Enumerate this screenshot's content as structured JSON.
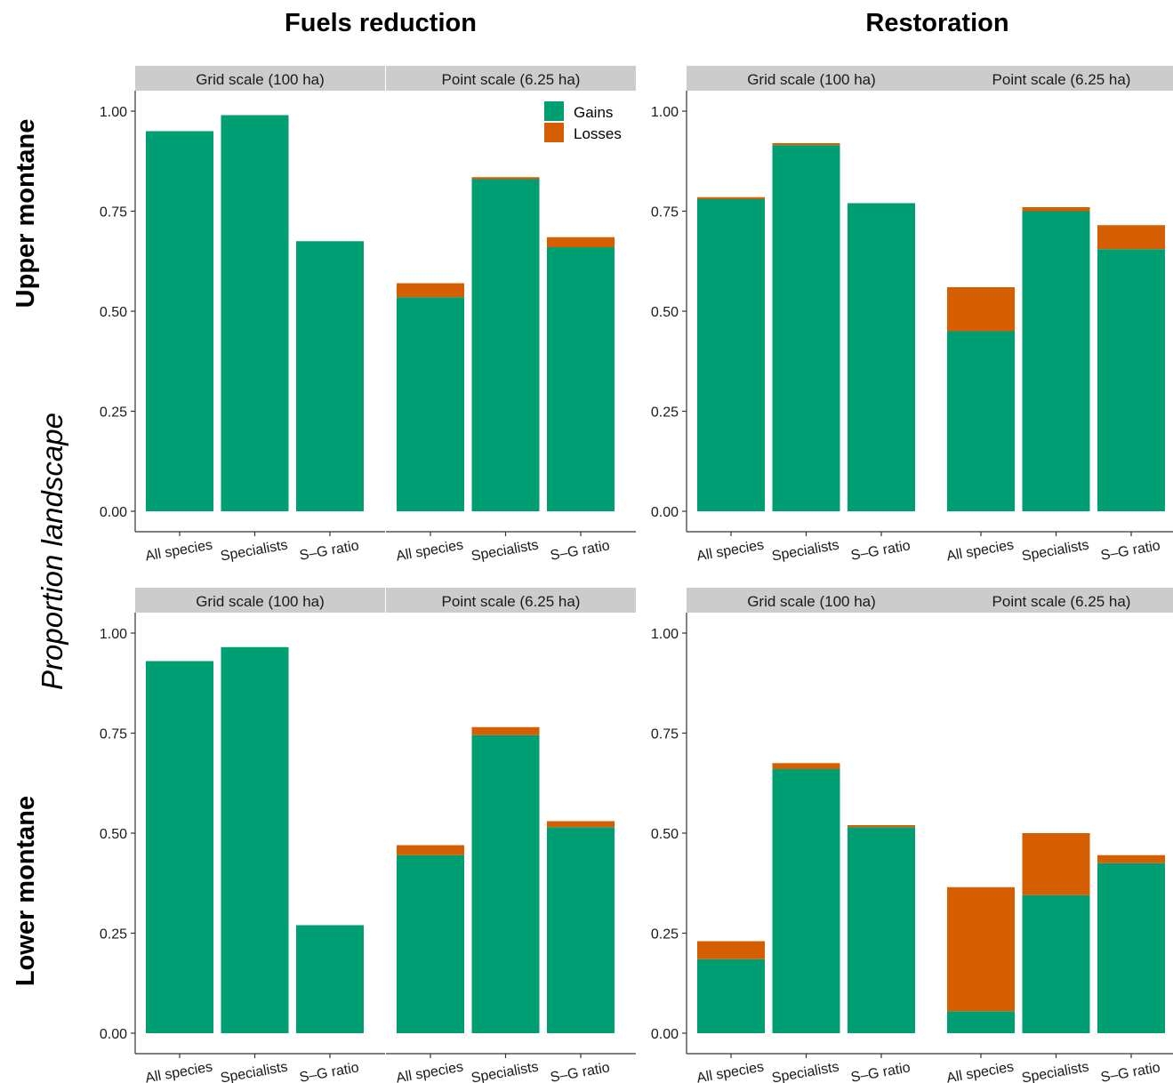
{
  "colors": {
    "gains": "#009E73",
    "losses": "#D55E00",
    "strip": "#CCCCCC"
  },
  "column_titles": [
    "Fuels reduction",
    "Restoration"
  ],
  "row_titles": [
    "Upper montane",
    "Lower montane"
  ],
  "y_axis_title": "Proportion landscape",
  "legend": {
    "gains": "Gains",
    "losses": "Losses"
  },
  "chart_data": {
    "type": "bar",
    "stacked": true,
    "ylim": [
      0,
      1.05
    ],
    "yticks": [
      "0.00",
      "0.25",
      "0.50",
      "0.75",
      "1.00"
    ],
    "categories": [
      "All species",
      "Specialists",
      "S–G ratio"
    ],
    "series_names": [
      "Gains",
      "Losses"
    ],
    "legend_position": "top-right",
    "grid": false,
    "panels": [
      {
        "row": 0,
        "col": 0,
        "strip": "Grid scale (100 ha)",
        "gains": [
          0.95,
          0.99,
          0.675
        ],
        "losses": [
          0.0,
          0.0,
          0.0
        ]
      },
      {
        "row": 0,
        "col": 1,
        "strip": "Point scale (6.25 ha)",
        "gains": [
          0.535,
          0.83,
          0.66
        ],
        "losses": [
          0.035,
          0.005,
          0.025
        ]
      },
      {
        "row": 0,
        "col": 2,
        "strip": "Grid scale (100 ha)",
        "gains": [
          0.78,
          0.915,
          0.77
        ],
        "losses": [
          0.005,
          0.005,
          0.0
        ]
      },
      {
        "row": 0,
        "col": 3,
        "strip": "Point scale (6.25 ha)",
        "gains": [
          0.45,
          0.75,
          0.655
        ],
        "losses": [
          0.11,
          0.01,
          0.06
        ]
      },
      {
        "row": 1,
        "col": 0,
        "strip": "Grid scale (100 ha)",
        "gains": [
          0.93,
          0.965,
          0.27
        ],
        "losses": [
          0.0,
          0.0,
          0.0
        ]
      },
      {
        "row": 1,
        "col": 1,
        "strip": "Point scale (6.25 ha)",
        "gains": [
          0.445,
          0.745,
          0.515
        ],
        "losses": [
          0.025,
          0.02,
          0.015
        ]
      },
      {
        "row": 1,
        "col": 2,
        "strip": "Grid scale (100 ha)",
        "gains": [
          0.185,
          0.66,
          0.515
        ],
        "losses": [
          0.045,
          0.015,
          0.005
        ]
      },
      {
        "row": 1,
        "col": 3,
        "strip": "Point scale (6.25 ha)",
        "gains": [
          0.055,
          0.345,
          0.425
        ],
        "losses": [
          0.31,
          0.155,
          0.02
        ]
      }
    ]
  }
}
